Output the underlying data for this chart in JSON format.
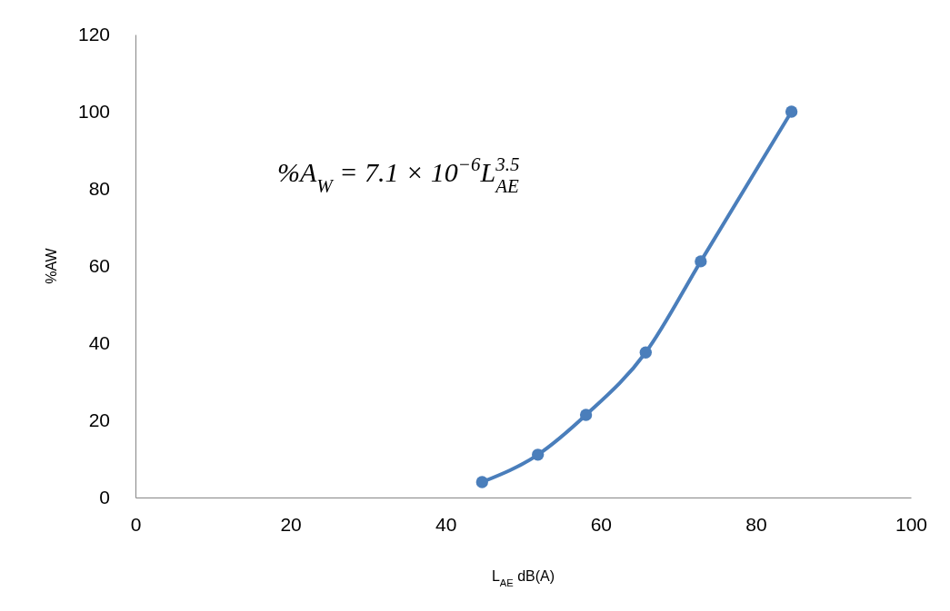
{
  "chart_data": {
    "type": "line",
    "xlabel": "L$_{AE}$ dB(A)",
    "ylabel": "%AW",
    "x": [
      44.7,
      51.9,
      58.1,
      65.8,
      72.9,
      84.6
    ],
    "series": [
      {
        "color": "#4a7ebb",
        "values": [
          4.0,
          11.1,
          21.4,
          37.6,
          61.2,
          100
        ]
      }
    ],
    "xlim": [
      0,
      100
    ],
    "xticks": [
      0,
      20,
      40,
      60,
      80,
      100
    ],
    "ylim": [
      0,
      120
    ],
    "yticks": [
      0,
      20,
      40,
      60,
      80,
      100,
      120
    ],
    "grid": false,
    "marker": "circle",
    "line_style": "solid",
    "annotations": [
      "%A$_{W}$ = 7.1 × 10$^{−6}$L$^{3.5}$$_{AE}$"
    ]
  }
}
